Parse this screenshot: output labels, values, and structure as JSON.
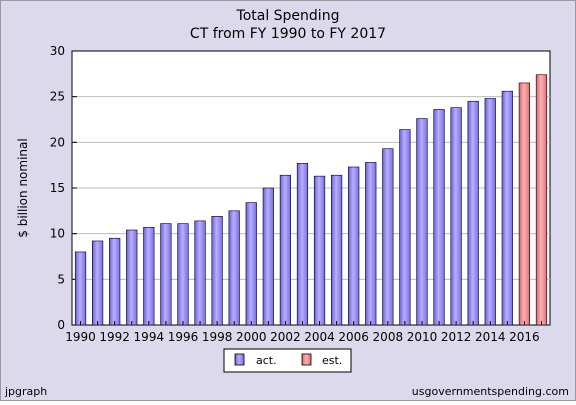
{
  "chart_data": {
    "type": "bar",
    "title": "Total Spending",
    "subtitle": "CT from FY 1990 to FY 2017",
    "ylabel": "$ billion nominal",
    "xlabel": "",
    "ylim": [
      0,
      30
    ],
    "yticks": [
      0,
      5,
      10,
      15,
      20,
      25,
      30
    ],
    "grid": true,
    "legend_position": "bottom-center",
    "categories": [
      "1990",
      "1991",
      "1992",
      "1993",
      "1994",
      "1995",
      "1996",
      "1997",
      "1998",
      "1999",
      "2000",
      "2001",
      "2002",
      "2003",
      "2004",
      "2005",
      "2006",
      "2007",
      "2008",
      "2009",
      "2010",
      "2011",
      "2012",
      "2013",
      "2014",
      "2015",
      "2016",
      "2017"
    ],
    "x_tick_labels": [
      "1990",
      "",
      "1992",
      "",
      "1994",
      "",
      "1996",
      "",
      "1998",
      "",
      "2000",
      "",
      "2002",
      "",
      "2004",
      "",
      "2006",
      "",
      "2008",
      "",
      "2010",
      "",
      "2012",
      "",
      "2014",
      "",
      "2016",
      ""
    ],
    "series": [
      {
        "name": "act.",
        "color": "#8f82f4",
        "values": [
          8.0,
          9.2,
          9.5,
          10.4,
          10.7,
          11.1,
          11.1,
          11.4,
          11.9,
          12.5,
          13.4,
          15.0,
          16.4,
          17.7,
          16.3,
          16.4,
          17.3,
          17.8,
          19.3,
          21.4,
          22.6,
          23.6,
          23.8,
          24.5,
          24.8,
          25.6,
          null,
          null
        ]
      },
      {
        "name": "est.",
        "color": "#f47f82",
        "values": [
          null,
          null,
          null,
          null,
          null,
          null,
          null,
          null,
          null,
          null,
          null,
          null,
          null,
          null,
          null,
          null,
          null,
          null,
          null,
          null,
          null,
          null,
          null,
          null,
          null,
          null,
          26.5,
          27.4
        ]
      }
    ]
  },
  "footer": {
    "left": "jpgraph",
    "right": "usgovernmentspending.com"
  },
  "colors": {
    "background": "#dcd9ec",
    "plot_background": "#ffffff",
    "grid": "#bbbbbb"
  }
}
